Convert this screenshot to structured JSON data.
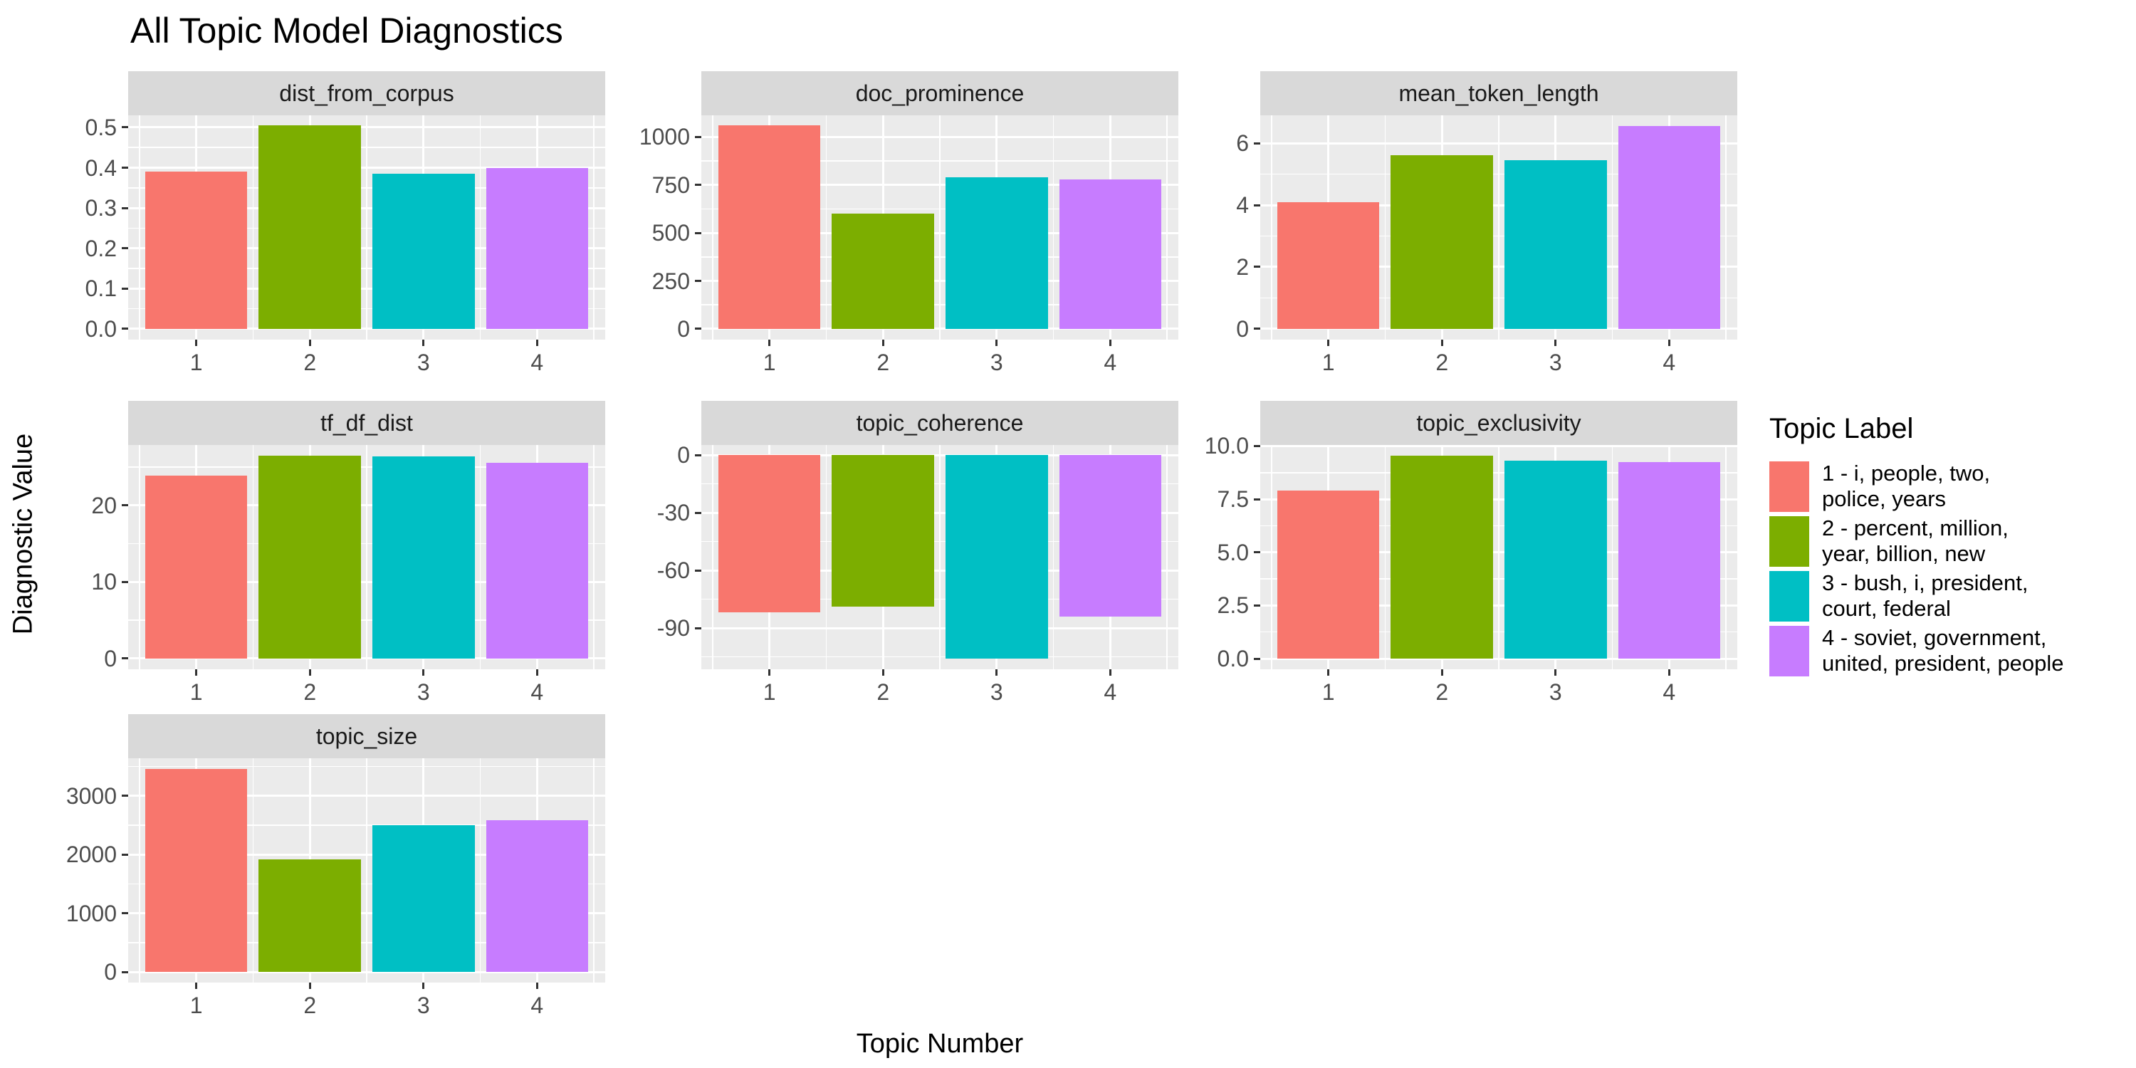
{
  "title": "All Topic Model Diagnostics",
  "x_axis_label": "Topic Number",
  "y_axis_label": "Diagnostic Value",
  "legend": {
    "title": "Topic Label",
    "items": [
      {
        "label": "1 - i, people, two,\npolice, years",
        "color": "#F8766D"
      },
      {
        "label": "2 - percent, million,\nyear, billion, new",
        "color": "#7CAE00"
      },
      {
        "label": "3 - bush, i, president,\ncourt, federal",
        "color": "#00BFC4"
      },
      {
        "label": "4 - soviet, government,\nunited, president, people",
        "color": "#C77CFF"
      }
    ]
  },
  "chart_data": {
    "type": "bar",
    "faceted": true,
    "title": "All Topic Model Diagnostics",
    "xlabel": "Topic Number",
    "ylabel": "Diagnostic Value",
    "categories": [
      "1",
      "2",
      "3",
      "4"
    ],
    "bar_colors": [
      "#F8766D",
      "#7CAE00",
      "#00BFC4",
      "#C77CFF"
    ],
    "grid": true,
    "legend_position": "right",
    "panel_background": "#EBEBEB",
    "strip_background": "#D9D9D9",
    "facets": [
      {
        "title": "dist_from_corpus",
        "values": [
          0.39,
          0.505,
          0.385,
          0.4
        ],
        "yticks": [
          0,
          0.1,
          0.2,
          0.3,
          0.4,
          0.5
        ],
        "ytick_labels": [
          "0.0",
          "0.1",
          "0.2",
          "0.3",
          "0.4",
          "0.5"
        ],
        "ylim": [
          -0.027,
          0.53
        ]
      },
      {
        "title": "doc_prominence",
        "values": [
          1060,
          600,
          790,
          780
        ],
        "yticks": [
          0,
          250,
          500,
          750,
          1000
        ],
        "ytick_labels": [
          "0",
          "250",
          "500",
          "750",
          "1000"
        ],
        "ylim": [
          -56,
          1113
        ]
      },
      {
        "title": "mean_token_length",
        "values": [
          4.1,
          5.6,
          5.45,
          6.55
        ],
        "yticks": [
          0,
          2,
          4,
          6
        ],
        "ytick_labels": [
          "0",
          "2",
          "4",
          "6"
        ],
        "ylim": [
          -0.35,
          6.9
        ]
      },
      {
        "title": "tf_df_dist",
        "values": [
          23.9,
          26.5,
          26.4,
          25.6
        ],
        "yticks": [
          0,
          10,
          20
        ],
        "ytick_labels": [
          "0",
          "10",
          "20"
        ],
        "ylim": [
          -1.4,
          27.9
        ]
      },
      {
        "title": "topic_coherence",
        "values": [
          -82,
          -79,
          -106,
          -84
        ],
        "yticks": [
          -90,
          -60,
          -30,
          0
        ],
        "ytick_labels": [
          "-90",
          "-60",
          "-30",
          "0"
        ],
        "ylim": [
          -111.5,
          5.3
        ]
      },
      {
        "title": "topic_exclusivity",
        "values": [
          7.9,
          9.55,
          9.3,
          9.25
        ],
        "yticks": [
          0,
          2.5,
          5,
          7.5,
          10
        ],
        "ytick_labels": [
          "0.0",
          "2.5",
          "5.0",
          "7.5",
          "10.0"
        ],
        "ylim": [
          -0.5,
          10.05
        ]
      },
      {
        "title": "topic_size",
        "values": [
          3460,
          1920,
          2500,
          2580
        ],
        "yticks": [
          0,
          1000,
          2000,
          3000
        ],
        "ytick_labels": [
          "0",
          "1000",
          "2000",
          "3000"
        ],
        "ylim": [
          -182,
          3640
        ]
      }
    ]
  }
}
